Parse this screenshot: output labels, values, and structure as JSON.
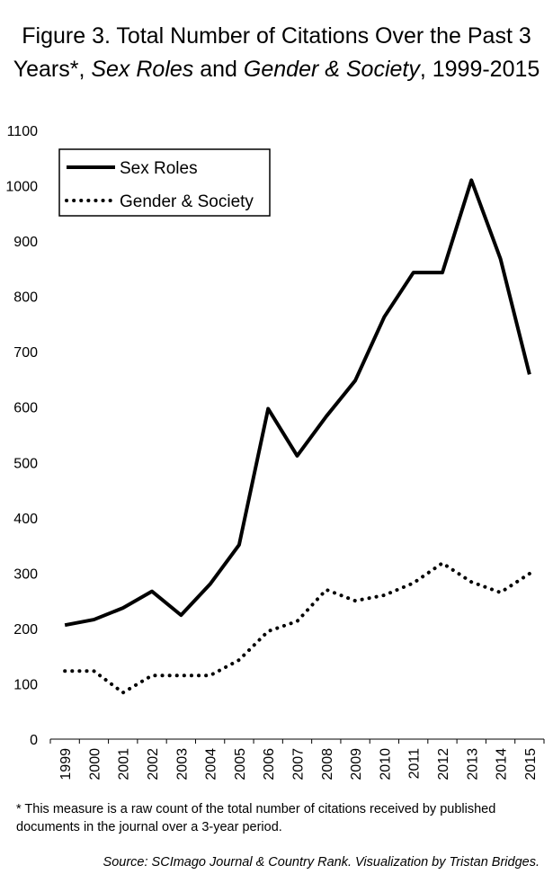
{
  "title": {
    "part1": "Figure 3. Total Number of Citations Over the Past 3 Years*, ",
    "journal1": "Sex Roles",
    "part2": " and ",
    "journal2": "Gender & Society",
    "part3": ", 1999-2015"
  },
  "footnote": "* This measure is a raw count of the total number of citations received by published documents in the journal over a 3-year period.",
  "source": "Source: SCImago Journal & Country Rank.  Visualization by Tristan Bridges.",
  "chart_data": {
    "type": "line",
    "title": "Figure 3. Total Number of Citations Over the Past 3 Years*, Sex Roles and Gender & Society, 1999-2015",
    "xlabel": "",
    "ylabel": "",
    "x": [
      "1999",
      "2000",
      "2001",
      "2002",
      "2003",
      "2004",
      "2005",
      "2006",
      "2007",
      "2008",
      "2009",
      "2010",
      "2011",
      "2012",
      "2013",
      "2014",
      "2015"
    ],
    "ylim": [
      0,
      1100
    ],
    "yticks": [
      0,
      100,
      200,
      300,
      400,
      500,
      600,
      700,
      800,
      900,
      1000,
      1100
    ],
    "grid": false,
    "legend_position": "top-left",
    "series": [
      {
        "name": "Sex Roles",
        "style": "solid",
        "color": "#000000",
        "values": [
          206,
          216,
          237,
          267,
          224,
          280,
          351,
          597,
          512,
          583,
          648,
          763,
          843,
          843,
          1010,
          868,
          659
        ]
      },
      {
        "name": "Gender & Society",
        "style": "dotted",
        "color": "#000000",
        "values": [
          123,
          123,
          84,
          115,
          115,
          115,
          143,
          195,
          213,
          270,
          250,
          260,
          282,
          318,
          284,
          265,
          299
        ]
      }
    ]
  }
}
